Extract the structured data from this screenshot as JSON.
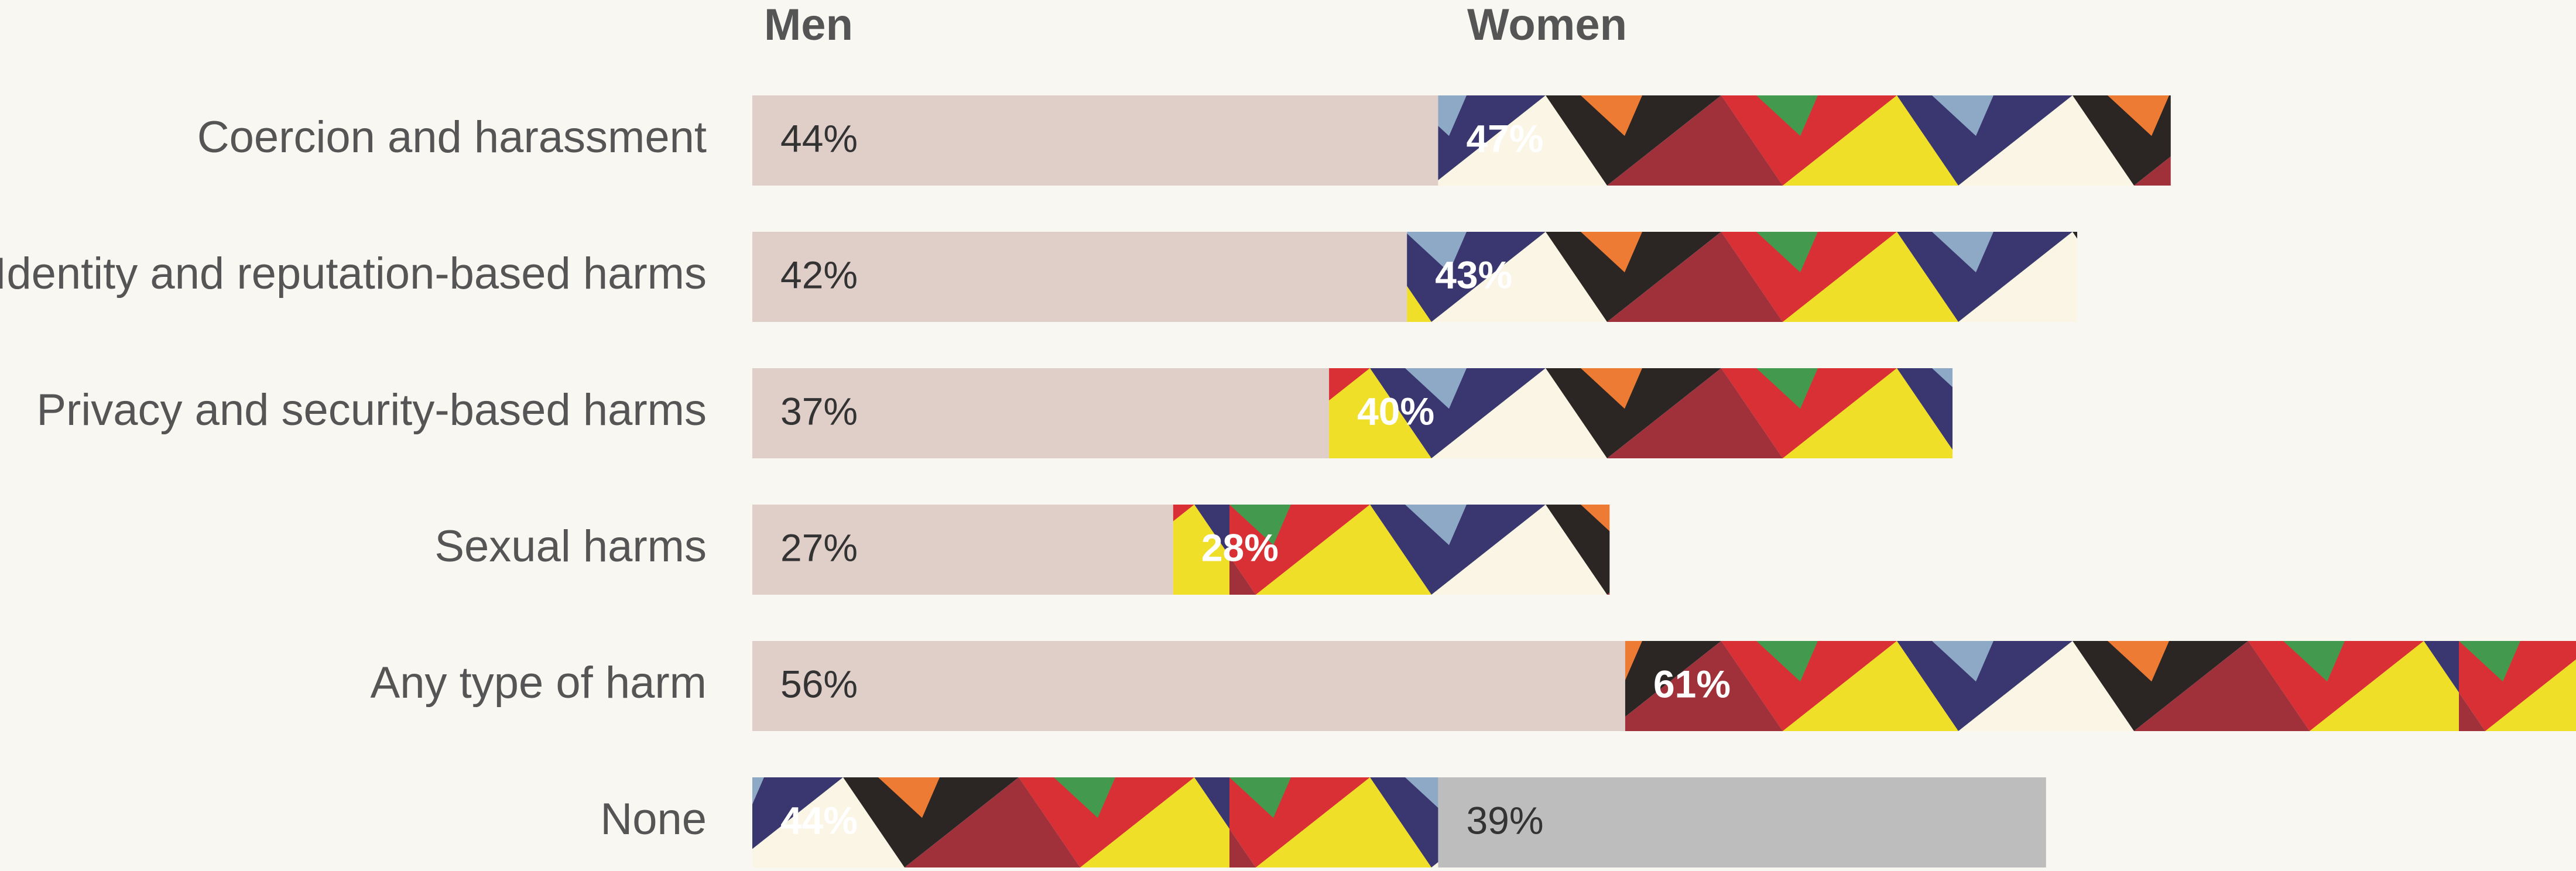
{
  "chart_data": {
    "type": "bar",
    "orientation": "horizontal",
    "stacked": true,
    "categories": [
      "Coercion and harassment",
      "Identity and reputation-based harms",
      "Privacy and security-based harms",
      "Sexual harms",
      "Any type of harm",
      "None"
    ],
    "series": [
      {
        "name": "Men",
        "color": "#e0cfc8",
        "values": [
          44,
          42,
          37,
          27,
          56,
          44
        ],
        "value_labels": [
          "44%",
          "42%",
          "37%",
          "27%",
          "56%",
          "44%"
        ]
      },
      {
        "name": "Women",
        "color": "#bdbdbd",
        "values": [
          47,
          43,
          40,
          28,
          61,
          39
        ],
        "value_labels": [
          "47%",
          "43%",
          "40%",
          "28%",
          "61%",
          "39%"
        ]
      }
    ],
    "highlight_palette": [
      "#d93035",
      "#ee7b33",
      "#a0313a",
      "#3a3670",
      "#439a4f",
      "#f0df29",
      "#2b2624",
      "#8ea9c6",
      "#fbf5e6"
    ],
    "xlim": [
      0,
      117
    ]
  }
}
